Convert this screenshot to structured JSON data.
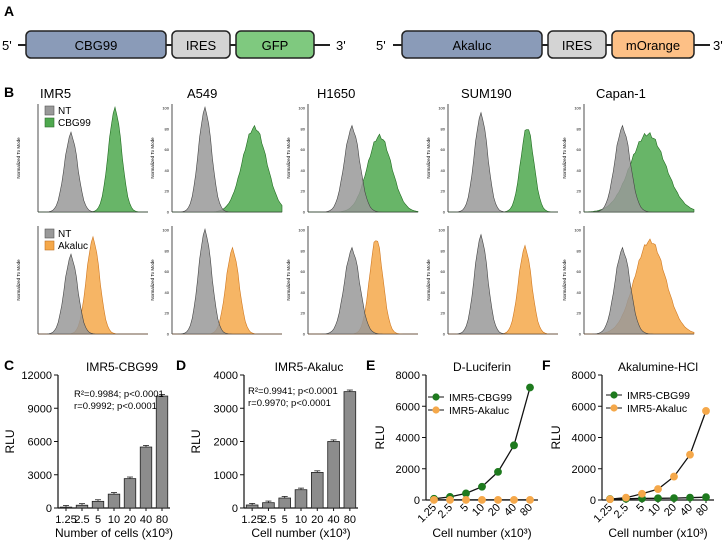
{
  "panels": {
    "A": "A",
    "B": "B",
    "C": "C",
    "D": "D",
    "E": "E",
    "F": "F"
  },
  "panel_a": {
    "constructs": [
      {
        "five_prime": "5'",
        "three_prime": "3'",
        "segments": [
          {
            "label": "CBG99",
            "color": "#8a9bb8"
          },
          {
            "label": "IRES",
            "color": "#d4d4d4"
          },
          {
            "label": "GFP",
            "color": "#7fc97f"
          }
        ]
      },
      {
        "five_prime": "5'",
        "three_prime": "3'",
        "segments": [
          {
            "label": "Akaluc",
            "color": "#8a9bb8"
          },
          {
            "label": "IRES",
            "color": "#d4d4d4"
          },
          {
            "label": "mOrange",
            "color": "#fdc086"
          }
        ]
      }
    ]
  },
  "panel_b": {
    "cell_lines": [
      "IMR5",
      "A549",
      "H1650",
      "SUM190",
      "Capan-1"
    ],
    "y_axis_label": "Normalized To Mode",
    "y_ticks": [
      "0",
      "20",
      "40",
      "60",
      "80",
      "100"
    ],
    "legend_row1": [
      "NT",
      "CBG99"
    ],
    "legend_row2": [
      "NT",
      "Akaluc"
    ],
    "colors": {
      "nt": "#999999",
      "cbg99": "#4ea84e",
      "akaluc": "#f5a84a"
    }
  },
  "chart_data": [
    {
      "type": "bar",
      "panel": "C",
      "title": "IMR5-CBG99",
      "xlabel": "Number of cells (x10³)",
      "ylabel": "RLU",
      "categories": [
        "1.25",
        "2.5",
        "5",
        "10",
        "20",
        "40",
        "80"
      ],
      "values": [
        80,
        250,
        600,
        1250,
        2650,
        5500,
        10100
      ],
      "ylim": [
        0,
        12000
      ],
      "yticks": [
        "0",
        "3000",
        "6000",
        "9000",
        "12000"
      ],
      "annotation": [
        "R²=0.9984; p<0.0001",
        "r=0.9992; p<0.0001"
      ]
    },
    {
      "type": "bar",
      "panel": "D",
      "title": "IMR5-Akaluc",
      "xlabel": "Cell number (x10³)",
      "ylabel": "RLU",
      "categories": [
        "1.25",
        "2.5",
        "5",
        "10",
        "20",
        "40",
        "80"
      ],
      "values": [
        90,
        160,
        300,
        550,
        1070,
        2000,
        3500
      ],
      "ylim": [
        0,
        4000
      ],
      "yticks": [
        "0",
        "1000",
        "2000",
        "3000",
        "4000"
      ],
      "annotation": [
        "R²=0.9941; p<0.0001",
        "r=0.9970; p<0.0001"
      ]
    },
    {
      "type": "line",
      "panel": "E",
      "title": "D-Luciferin",
      "xlabel": "Cell number (x10³)",
      "ylabel": "RLU",
      "categories": [
        "1.25",
        "2.5",
        "5",
        "10",
        "20",
        "40",
        "80"
      ],
      "series": [
        {
          "name": "IMR5-CBG99",
          "color": "#1e7a1e",
          "values": [
            80,
            200,
            420,
            850,
            1800,
            3500,
            7200
          ]
        },
        {
          "name": "IMR5-Akaluc",
          "color": "#f5a84a",
          "values": [
            5,
            5,
            5,
            5,
            5,
            5,
            5
          ]
        }
      ],
      "ylim": [
        0,
        8000
      ],
      "yticks": [
        "0",
        "2000",
        "4000",
        "6000",
        "8000"
      ]
    },
    {
      "type": "line",
      "panel": "F",
      "title": "Akalumine-HCl",
      "xlabel": "Cell number (x10³)",
      "ylabel": "RLU",
      "categories": [
        "1.25",
        "2.5",
        "5",
        "10",
        "20",
        "40",
        "80"
      ],
      "series": [
        {
          "name": "IMR5-CBG99",
          "color": "#1e7a1e",
          "values": [
            60,
            80,
            100,
            110,
            120,
            150,
            180
          ]
        },
        {
          "name": "IMR5-Akaluc",
          "color": "#f5a84a",
          "values": [
            50,
            150,
            400,
            700,
            1500,
            2900,
            5700
          ]
        }
      ],
      "ylim": [
        0,
        8000
      ],
      "yticks": [
        "0",
        "2000",
        "4000",
        "6000",
        "8000"
      ]
    }
  ]
}
